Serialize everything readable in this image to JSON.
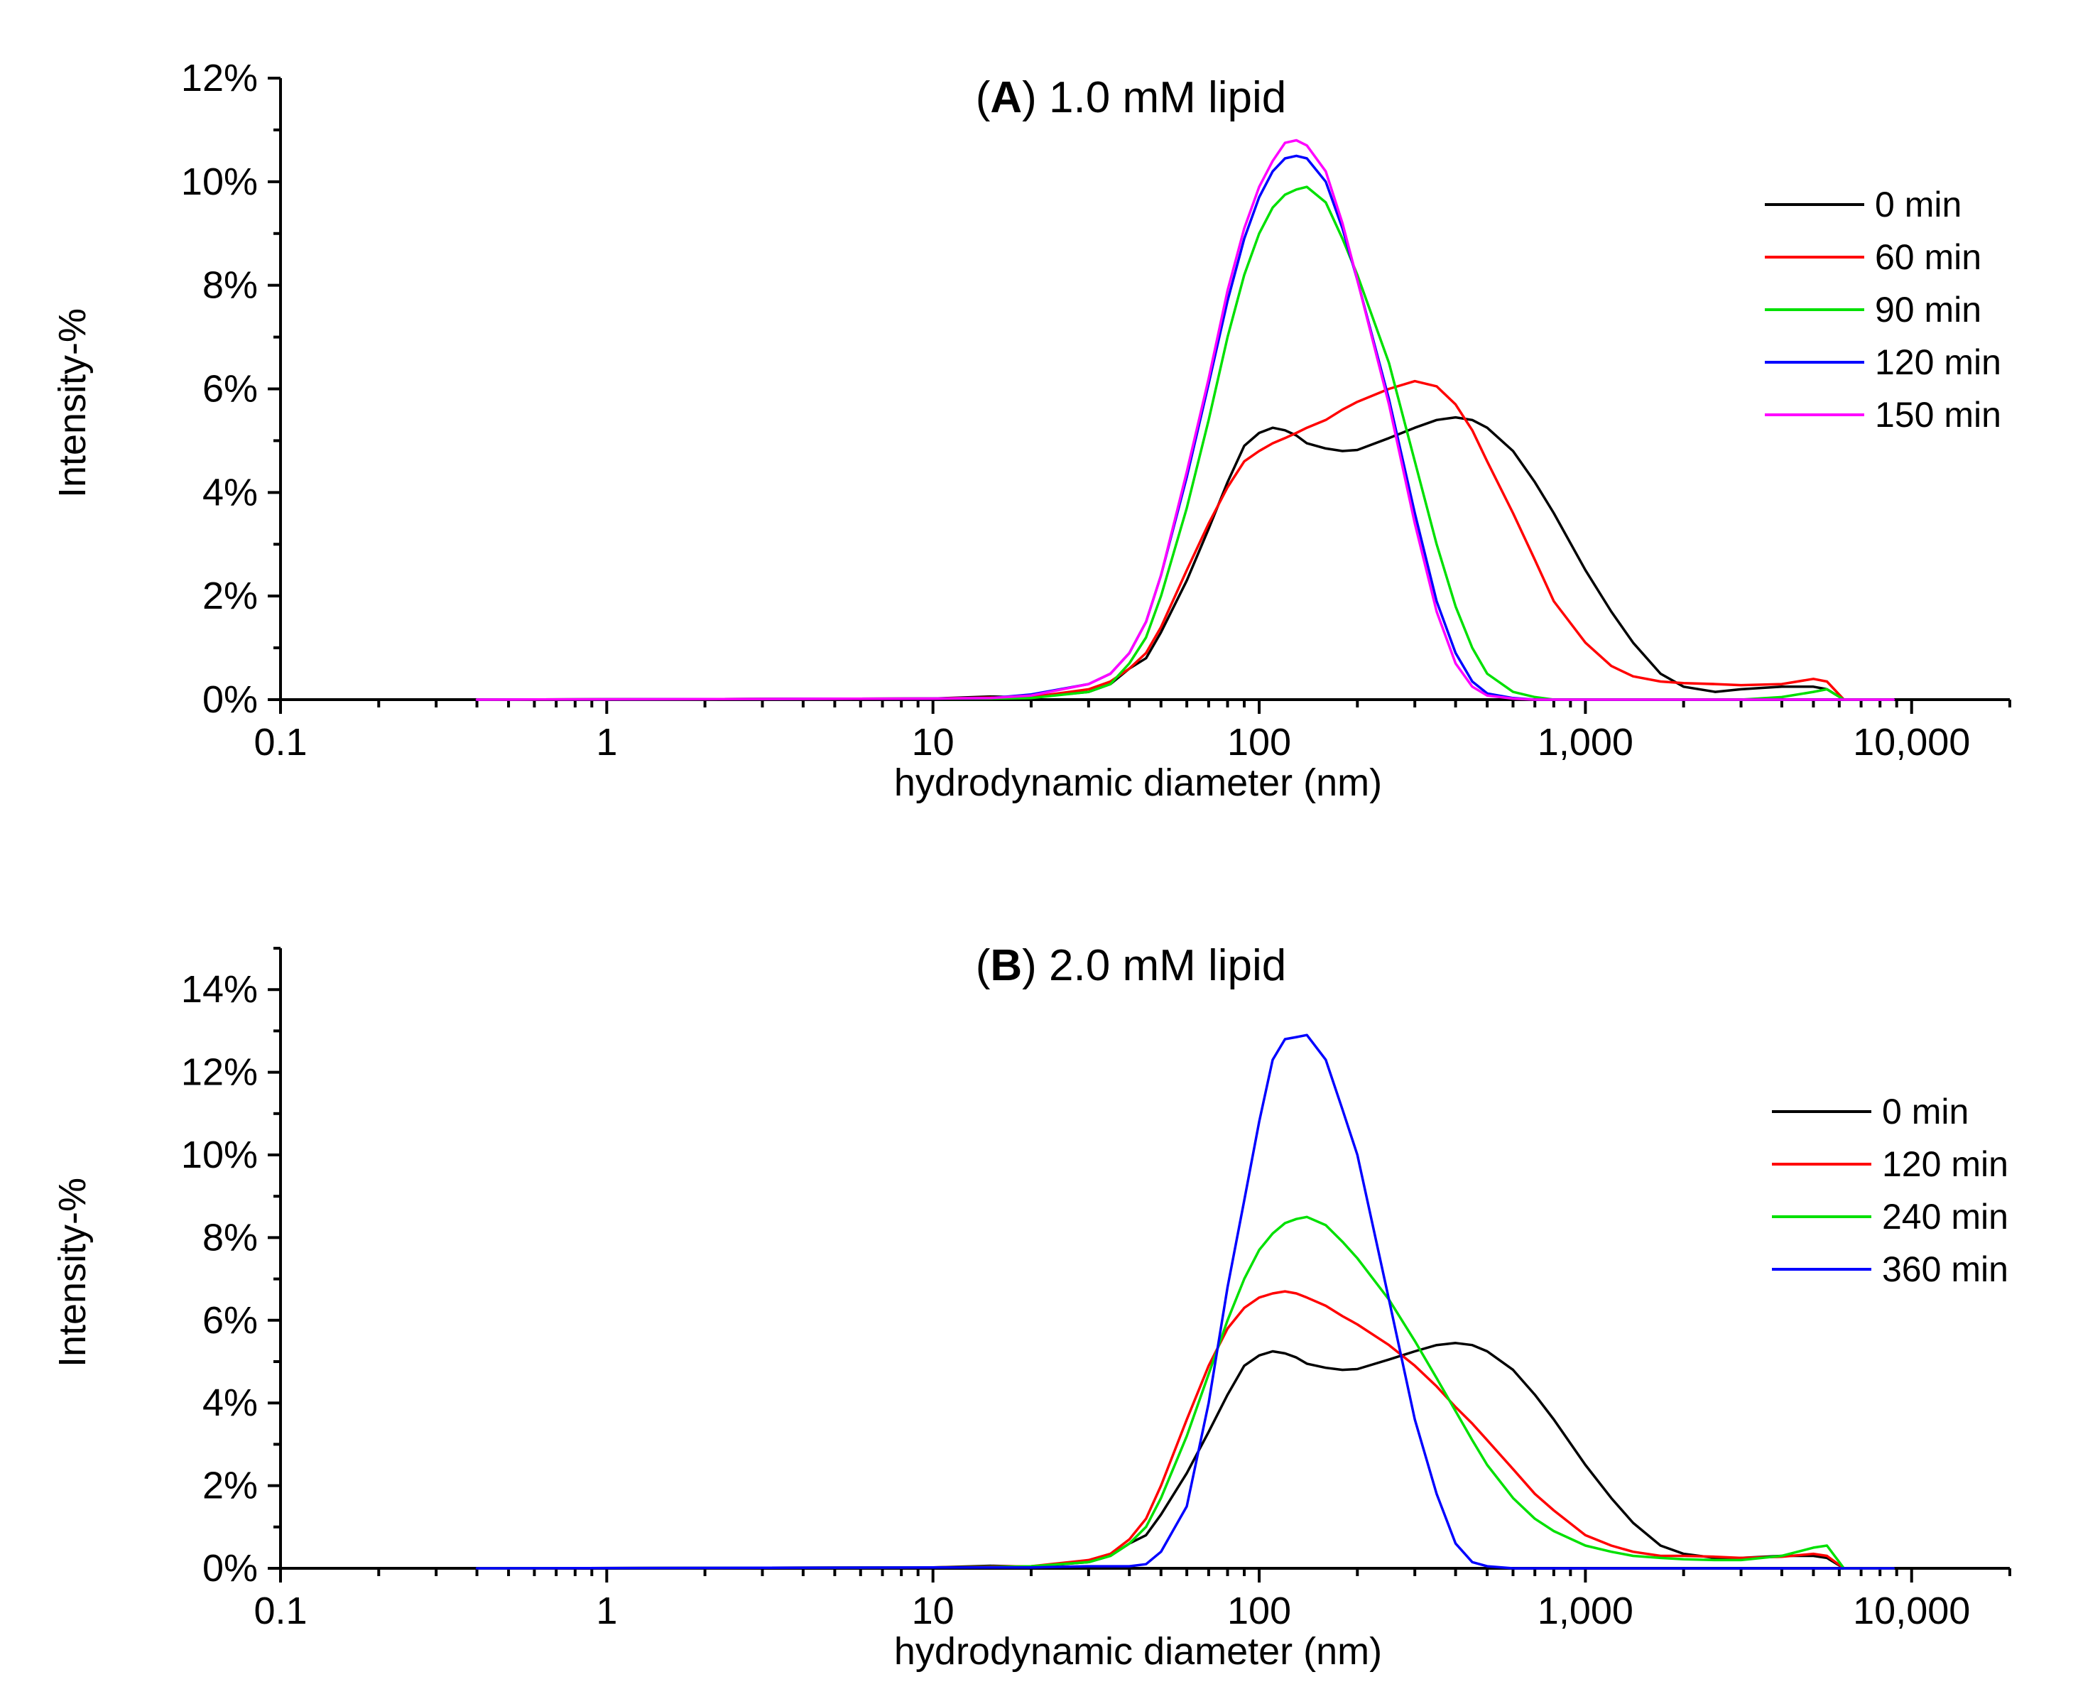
{
  "chart_data": [
    {
      "type": "line",
      "title_prefix": "(",
      "title_letter": "A",
      "title_rest": ") 1.0 mM lipid",
      "xlabel": "hydrodynamic diameter (nm)",
      "ylabel": "Intensity-%",
      "xscale": "log",
      "xlim": [
        0.1,
        20000
      ],
      "ylim": [
        0,
        12
      ],
      "xticks": [
        {
          "value": 0.1,
          "label": "0.1"
        },
        {
          "value": 1,
          "label": "1"
        },
        {
          "value": 10,
          "label": "10"
        },
        {
          "value": 100,
          "label": "100"
        },
        {
          "value": 1000,
          "label": "1,000"
        },
        {
          "value": 10000,
          "label": "10,000"
        }
      ],
      "yticks": [
        {
          "value": 0,
          "label": "0%"
        },
        {
          "value": 2,
          "label": "2%"
        },
        {
          "value": 4,
          "label": "4%"
        },
        {
          "value": 6,
          "label": "6%"
        },
        {
          "value": 8,
          "label": "8%"
        },
        {
          "value": 10,
          "label": "10%"
        },
        {
          "value": 12,
          "label": "12%"
        }
      ],
      "legend_position": "top-right",
      "x": [
        0.4,
        10,
        15,
        20,
        30,
        35,
        40,
        45,
        50,
        60,
        70,
        80,
        90,
        100,
        110,
        120,
        130,
        140,
        160,
        180,
        200,
        250,
        300,
        350,
        400,
        450,
        500,
        600,
        700,
        800,
        1000,
        1200,
        1400,
        1700,
        2000,
        2500,
        3000,
        4000,
        5000,
        5500,
        6200,
        8800
      ],
      "series": [
        {
          "name": "0 min",
          "color": "#000000",
          "values": [
            0,
            0.02,
            0.06,
            0.04,
            0.15,
            0.3,
            0.6,
            0.8,
            1.3,
            2.3,
            3.3,
            4.2,
            4.9,
            5.15,
            5.25,
            5.2,
            5.1,
            4.95,
            4.85,
            4.8,
            4.82,
            5.05,
            5.25,
            5.4,
            5.45,
            5.4,
            5.25,
            4.8,
            4.2,
            3.6,
            2.5,
            1.7,
            1.1,
            0.5,
            0.25,
            0.15,
            0.2,
            0.25,
            0.25,
            0.2,
            0,
            0
          ]
        },
        {
          "name": "60 min",
          "color": "#ff0000",
          "values": [
            0,
            0.02,
            0.04,
            0.05,
            0.2,
            0.35,
            0.6,
            0.9,
            1.4,
            2.5,
            3.4,
            4.1,
            4.6,
            4.8,
            4.95,
            5.05,
            5.15,
            5.25,
            5.4,
            5.6,
            5.75,
            6.0,
            6.15,
            6.05,
            5.7,
            5.2,
            4.6,
            3.6,
            2.7,
            1.9,
            1.1,
            0.65,
            0.45,
            0.35,
            0.32,
            0.3,
            0.28,
            0.3,
            0.4,
            0.35,
            0,
            0
          ]
        },
        {
          "name": "90 min",
          "color": "#00e000",
          "values": [
            0,
            0.02,
            0.02,
            0.03,
            0.15,
            0.3,
            0.7,
            1.2,
            2.0,
            3.7,
            5.4,
            7.0,
            8.2,
            9.0,
            9.5,
            9.75,
            9.85,
            9.9,
            9.6,
            8.9,
            8.2,
            6.5,
            4.6,
            3.0,
            1.8,
            1.0,
            0.5,
            0.15,
            0.05,
            0,
            0,
            0,
            0,
            0,
            0,
            0,
            0,
            0.05,
            0.15,
            0.2,
            0,
            0
          ]
        },
        {
          "name": "120 min",
          "color": "#0000ff",
          "values": [
            0,
            0.02,
            0.03,
            0.1,
            0.3,
            0.5,
            0.9,
            1.5,
            2.4,
            4.3,
            6.1,
            7.7,
            8.9,
            9.7,
            10.2,
            10.45,
            10.5,
            10.45,
            10.0,
            9.1,
            8.1,
            5.8,
            3.6,
            1.9,
            0.9,
            0.35,
            0.12,
            0.03,
            0,
            0,
            0,
            0,
            0,
            0,
            0,
            0,
            0,
            0,
            0,
            0,
            0,
            0
          ]
        },
        {
          "name": "150 min",
          "color": "#ff00ff",
          "values": [
            0,
            0.02,
            0.03,
            0.08,
            0.3,
            0.5,
            0.9,
            1.5,
            2.4,
            4.4,
            6.2,
            7.9,
            9.1,
            9.9,
            10.4,
            10.75,
            10.8,
            10.7,
            10.2,
            9.2,
            8.1,
            5.7,
            3.4,
            1.7,
            0.7,
            0.25,
            0.08,
            0.02,
            0,
            0,
            0,
            0,
            0,
            0,
            0,
            0,
            0,
            0,
            0,
            0,
            0,
            0
          ]
        }
      ]
    },
    {
      "type": "line",
      "title_prefix": "(",
      "title_letter": "B",
      "title_rest": ") 2.0 mM lipid",
      "xlabel": "hydrodynamic diameter (nm)",
      "ylabel": "Intensity-%",
      "xscale": "log",
      "xlim": [
        0.1,
        20000
      ],
      "ylim": [
        0,
        15
      ],
      "xticks": [
        {
          "value": 0.1,
          "label": "0.1"
        },
        {
          "value": 1,
          "label": "1"
        },
        {
          "value": 10,
          "label": "10"
        },
        {
          "value": 100,
          "label": "100"
        },
        {
          "value": 1000,
          "label": "1,000"
        },
        {
          "value": 10000,
          "label": "10,000"
        }
      ],
      "yticks": [
        {
          "value": 0,
          "label": "0%"
        },
        {
          "value": 2,
          "label": "2%"
        },
        {
          "value": 4,
          "label": "4%"
        },
        {
          "value": 6,
          "label": "6%"
        },
        {
          "value": 8,
          "label": "8%"
        },
        {
          "value": 10,
          "label": "10%"
        },
        {
          "value": 12,
          "label": "12%"
        },
        {
          "value": 14,
          "label": "14%"
        }
      ],
      "legend_position": "right",
      "x": [
        0.4,
        10,
        15,
        20,
        30,
        35,
        40,
        45,
        50,
        60,
        70,
        80,
        90,
        100,
        110,
        120,
        130,
        140,
        160,
        180,
        200,
        250,
        300,
        350,
        400,
        450,
        500,
        600,
        700,
        800,
        1000,
        1200,
        1400,
        1700,
        2000,
        2500,
        3000,
        4000,
        5000,
        5500,
        6200,
        8800
      ],
      "series": [
        {
          "name": "0 min",
          "color": "#000000",
          "values": [
            0,
            0.02,
            0.06,
            0.04,
            0.15,
            0.3,
            0.6,
            0.8,
            1.3,
            2.3,
            3.3,
            4.2,
            4.9,
            5.15,
            5.25,
            5.2,
            5.1,
            4.95,
            4.85,
            4.8,
            4.82,
            5.05,
            5.25,
            5.4,
            5.45,
            5.4,
            5.25,
            4.8,
            4.2,
            3.6,
            2.5,
            1.7,
            1.1,
            0.55,
            0.35,
            0.25,
            0.25,
            0.3,
            0.3,
            0.25,
            0,
            0
          ]
        },
        {
          "name": "120 min",
          "color": "#ff0000",
          "values": [
            0,
            0.02,
            0.04,
            0.05,
            0.2,
            0.35,
            0.7,
            1.2,
            2.0,
            3.6,
            4.9,
            5.8,
            6.3,
            6.55,
            6.65,
            6.7,
            6.65,
            6.55,
            6.35,
            6.1,
            5.9,
            5.4,
            4.9,
            4.4,
            3.9,
            3.5,
            3.1,
            2.4,
            1.8,
            1.4,
            0.8,
            0.55,
            0.4,
            0.3,
            0.3,
            0.28,
            0.25,
            0.28,
            0.35,
            0.3,
            0,
            0
          ]
        },
        {
          "name": "240 min",
          "color": "#00e000",
          "values": [
            0,
            0.02,
            0.03,
            0.05,
            0.15,
            0.3,
            0.6,
            1.0,
            1.7,
            3.2,
            4.7,
            6.0,
            7.0,
            7.7,
            8.1,
            8.35,
            8.45,
            8.5,
            8.3,
            7.9,
            7.5,
            6.5,
            5.5,
            4.6,
            3.8,
            3.1,
            2.5,
            1.7,
            1.2,
            0.9,
            0.55,
            0.4,
            0.3,
            0.25,
            0.22,
            0.2,
            0.2,
            0.3,
            0.5,
            0.55,
            0,
            0
          ]
        },
        {
          "name": "360 min",
          "color": "#0000ff",
          "values": [
            0,
            0.02,
            0.02,
            0.02,
            0.05,
            0.05,
            0.05,
            0.1,
            0.4,
            1.5,
            4.0,
            6.8,
            8.9,
            10.8,
            12.3,
            12.8,
            12.85,
            12.9,
            12.3,
            11.1,
            10.0,
            6.5,
            3.6,
            1.8,
            0.6,
            0.15,
            0.05,
            0,
            0,
            0,
            0,
            0,
            0,
            0,
            0,
            0,
            0,
            0,
            0,
            0,
            0,
            0
          ]
        }
      ]
    }
  ]
}
